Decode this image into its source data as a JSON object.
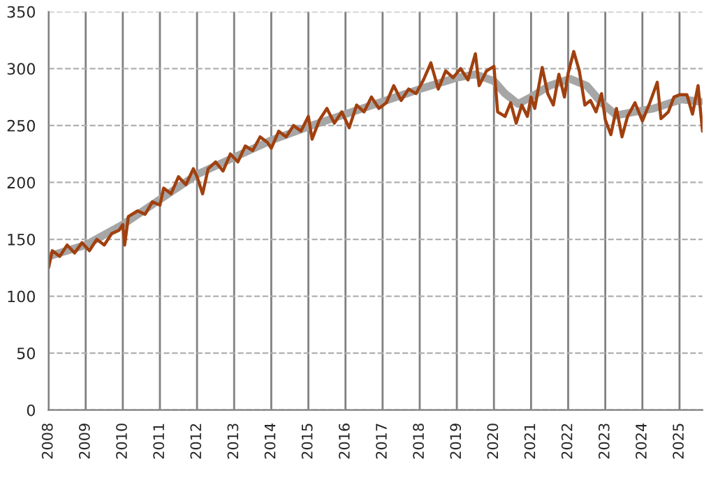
{
  "chart_data": {
    "type": "line",
    "xlim": [
      2008,
      2025.62
    ],
    "xticks": [
      2008,
      2009,
      2010,
      2011,
      2012,
      2013,
      2014,
      2015,
      2016,
      2017,
      2018,
      2019,
      2020,
      2021,
      2022,
      2023,
      2024,
      2025
    ],
    "ylim": [
      0,
      350
    ],
    "yticks": [
      0,
      50,
      100,
      150,
      200,
      250,
      300,
      350
    ],
    "grid": true,
    "series": [
      {
        "color": "#a6a6a6",
        "x": [
          2008.0,
          2009.0,
          2010.0,
          2011.0,
          2012.0,
          2013.0,
          2014.0,
          2015.0,
          2016.0,
          2017.0,
          2018.0,
          2019.0,
          2019.5,
          2020.0,
          2020.3,
          2020.65,
          2021.0,
          2021.5,
          2022.05,
          2022.5,
          2022.9,
          2023.3,
          2023.8,
          2024.3,
          2025.05,
          2025.55
        ],
        "values": [
          135,
          145,
          163,
          185,
          207,
          222,
          237,
          249,
          260,
          271,
          282,
          292,
          295,
          289,
          278,
          269,
          275,
          285,
          291,
          285,
          270,
          259,
          262,
          265,
          273,
          271
        ]
      },
      {
        "color": "#a0400f",
        "x": [
          2008.0,
          2008.1,
          2008.3,
          2008.5,
          2008.7,
          2008.9,
          2009.1,
          2009.3,
          2009.5,
          2009.7,
          2009.9,
          2010.0,
          2010.05,
          2010.15,
          2010.4,
          2010.6,
          2010.8,
          2011.0,
          2011.1,
          2011.3,
          2011.5,
          2011.7,
          2011.9,
          2012.0,
          2012.15,
          2012.3,
          2012.5,
          2012.7,
          2012.9,
          2013.1,
          2013.3,
          2013.5,
          2013.7,
          2013.9,
          2014.0,
          2014.2,
          2014.4,
          2014.6,
          2014.8,
          2015.0,
          2015.1,
          2015.3,
          2015.5,
          2015.7,
          2015.9,
          2016.0,
          2016.1,
          2016.3,
          2016.5,
          2016.7,
          2016.9,
          2017.1,
          2017.3,
          2017.5,
          2017.7,
          2017.9,
          2018.1,
          2018.3,
          2018.5,
          2018.7,
          2018.9,
          2019.1,
          2019.3,
          2019.5,
          2019.6,
          2019.8,
          2020.0,
          2020.1,
          2020.3,
          2020.45,
          2020.6,
          2020.75,
          2020.9,
          2021.0,
          2021.1,
          2021.3,
          2021.45,
          2021.6,
          2021.75,
          2021.9,
          2022.0,
          2022.15,
          2022.3,
          2022.45,
          2022.6,
          2022.75,
          2022.9,
          2023.0,
          2023.15,
          2023.3,
          2023.45,
          2023.6,
          2023.8,
          2024.0,
          2024.2,
          2024.4,
          2024.5,
          2024.7,
          2024.85,
          2025.0,
          2025.2,
          2025.35,
          2025.5,
          2025.62
        ],
        "values": [
          125,
          140,
          135,
          145,
          138,
          147,
          140,
          150,
          145,
          155,
          158,
          163,
          145,
          170,
          175,
          172,
          183,
          180,
          195,
          190,
          205,
          198,
          212,
          205,
          190,
          212,
          218,
          210,
          225,
          218,
          232,
          228,
          240,
          235,
          230,
          245,
          240,
          250,
          245,
          258,
          238,
          255,
          265,
          252,
          262,
          255,
          248,
          268,
          262,
          275,
          265,
          270,
          285,
          272,
          282,
          278,
          290,
          305,
          282,
          298,
          292,
          300,
          290,
          313,
          285,
          298,
          302,
          262,
          258,
          270,
          252,
          268,
          258,
          275,
          265,
          301,
          278,
          268,
          295,
          275,
          296,
          315,
          298,
          268,
          272,
          262,
          278,
          255,
          242,
          265,
          240,
          258,
          270,
          254,
          270,
          288,
          256,
          262,
          275,
          277,
          277,
          260,
          285,
          245
        ]
      }
    ]
  }
}
